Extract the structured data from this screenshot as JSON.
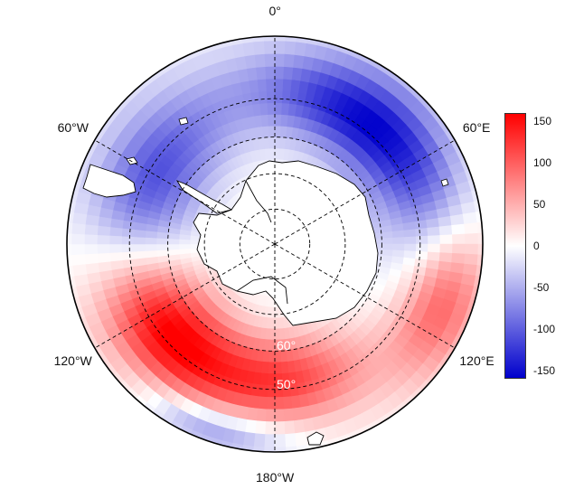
{
  "map": {
    "projection": "south-polar-stereographic",
    "field_grid_degrees": 3,
    "longitude_labels": [
      {
        "text": "0°",
        "lon": 0
      },
      {
        "text": "60°E",
        "lon": 60
      },
      {
        "text": "120°E",
        "lon": 120
      },
      {
        "text": "180°W",
        "lon": 180
      },
      {
        "text": "120°W",
        "lon": -120
      },
      {
        "text": "60°W",
        "lon": -60
      }
    ],
    "latitude_labels": [
      {
        "text": "60°",
        "lat": -60
      },
      {
        "text": "50°",
        "lat": -50
      }
    ],
    "graticule_latitudes": [
      -80,
      -70,
      -60,
      -50
    ],
    "graticule_longitudes": [
      0,
      60,
      120,
      180,
      240,
      300
    ],
    "outer_latitude": -35,
    "anomaly_centers": [
      {
        "lon": 40,
        "lat": -48,
        "value": -160,
        "spread_lon": 45,
        "spread_lat": 12
      },
      {
        "lon": -60,
        "lat": -52,
        "value": -110,
        "spread_lon": 40,
        "spread_lat": 14
      },
      {
        "lon": -130,
        "lat": -52,
        "value": 160,
        "spread_lon": 35,
        "spread_lat": 14
      },
      {
        "lon": 175,
        "lat": -52,
        "value": 110,
        "spread_lon": 35,
        "spread_lat": 12
      },
      {
        "lon": 110,
        "lat": -42,
        "value": 100,
        "spread_lon": 25,
        "spread_lat": 10
      },
      {
        "lon": 70,
        "lat": -68,
        "value": -30,
        "spread_lon": 40,
        "spread_lat": 10
      },
      {
        "lon": -160,
        "lat": -38,
        "value": -90,
        "spread_lon": 25,
        "spread_lat": 6
      },
      {
        "lon": 0,
        "lat": -80,
        "value": 20,
        "spread_lon": 30,
        "spread_lat": 6
      }
    ],
    "palette": {
      "negative": "#0000cc",
      "zero": "#ffffff",
      "positive": "#ff0000"
    }
  },
  "colorbar": {
    "min": -160,
    "max": 160,
    "ticks": [
      "150",
      "100",
      "50",
      "0",
      "-50",
      "-100",
      "-150"
    ],
    "tick_values": [
      150,
      100,
      50,
      0,
      -50,
      -100,
      -150
    ]
  }
}
